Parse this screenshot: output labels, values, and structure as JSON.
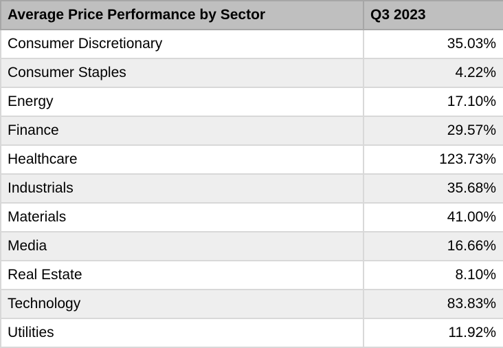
{
  "header": {
    "sector_label": "Average Price Performance by Sector",
    "period_label": "Q3 2023"
  },
  "rows": [
    {
      "sector": "Consumer Discretionary",
      "value": "35.03%"
    },
    {
      "sector": "Consumer Staples",
      "value": "4.22%"
    },
    {
      "sector": "Energy",
      "value": "17.10%"
    },
    {
      "sector": "Finance",
      "value": "29.57%"
    },
    {
      "sector": "Healthcare",
      "value": "123.73%"
    },
    {
      "sector": "Industrials",
      "value": "35.68%"
    },
    {
      "sector": "Materials",
      "value": "41.00%"
    },
    {
      "sector": "Media",
      "value": "16.66%"
    },
    {
      "sector": "Real Estate",
      "value": "8.10%"
    },
    {
      "sector": "Technology",
      "value": "83.83%"
    },
    {
      "sector": "Utilities",
      "value": "11.92%"
    }
  ],
  "colors": {
    "header_bg": "#bfbfbf",
    "header_border": "#a6a6a6",
    "band_bg": "#eeeeee",
    "grid_border": "#d8d8d8",
    "text": "#000000"
  },
  "chart_data": {
    "type": "table",
    "title": "Average Price Performance by Sector",
    "columns": [
      "Average Price Performance by Sector",
      "Q3 2023"
    ],
    "categories": [
      "Consumer Discretionary",
      "Consumer Staples",
      "Energy",
      "Finance",
      "Healthcare",
      "Industrials",
      "Materials",
      "Media",
      "Real Estate",
      "Technology",
      "Utilities"
    ],
    "values_percent": [
      35.03,
      4.22,
      17.1,
      29.57,
      123.73,
      35.68,
      41.0,
      16.66,
      8.1,
      83.83,
      11.92
    ],
    "value_format": "0.00%",
    "layout": "banded-rows, gray header, values right-aligned"
  }
}
